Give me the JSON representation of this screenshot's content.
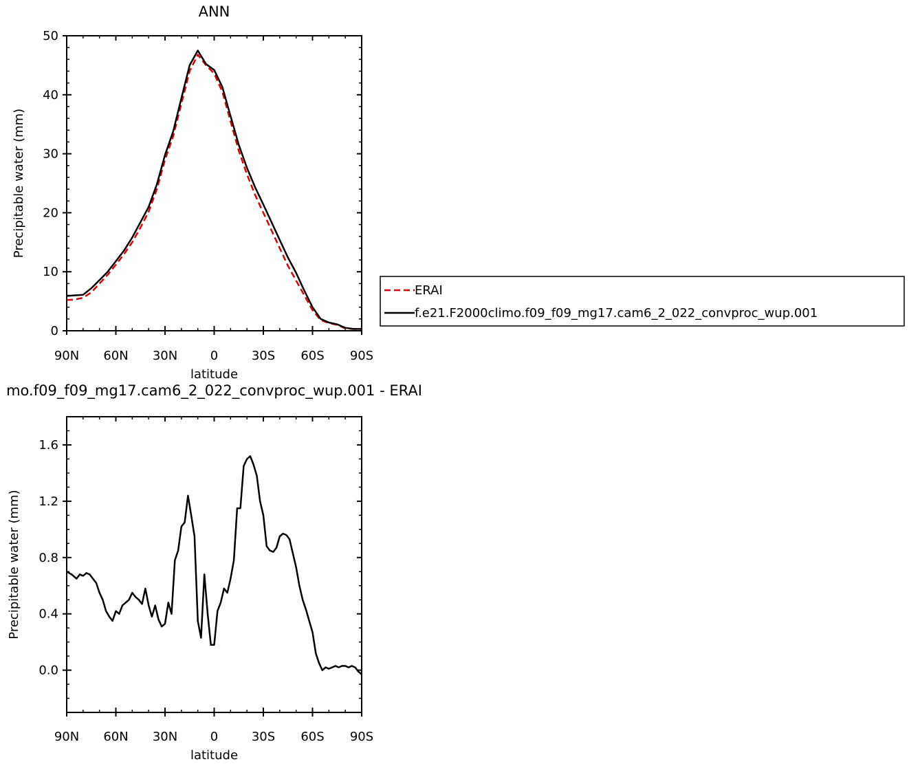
{
  "chart_data": [
    {
      "type": "line",
      "title": "ANN",
      "xlabel": "latitude",
      "ylabel": "Precipitable water (mm)",
      "xlim": [
        90,
        -90
      ],
      "ylim": [
        0,
        50
      ],
      "x_ticks": [
        {
          "value": 90,
          "label": "90N"
        },
        {
          "value": 60,
          "label": "60N"
        },
        {
          "value": 30,
          "label": "30N"
        },
        {
          "value": 0,
          "label": "0"
        },
        {
          "value": -30,
          "label": "30S"
        },
        {
          "value": -60,
          "label": "60S"
        },
        {
          "value": -90,
          "label": "90S"
        }
      ],
      "y_ticks": [
        {
          "value": 0,
          "label": "0"
        },
        {
          "value": 10,
          "label": "10"
        },
        {
          "value": 20,
          "label": "20"
        },
        {
          "value": 30,
          "label": "30"
        },
        {
          "value": 40,
          "label": "40"
        },
        {
          "value": 50,
          "label": "50"
        }
      ],
      "legend_placement": "right",
      "series": [
        {
          "name": "ERAI",
          "color": "#e00000",
          "style": "dashed",
          "x": [
            90,
            85,
            80,
            75,
            70,
            65,
            60,
            55,
            50,
            45,
            40,
            35,
            30,
            25,
            20,
            15,
            10,
            5,
            0,
            -5,
            -10,
            -15,
            -20,
            -25,
            -30,
            -35,
            -40,
            -45,
            -50,
            -55,
            -60,
            -65,
            -70,
            -75,
            -80,
            -85,
            -90
          ],
          "y": [
            5.2,
            5.3,
            5.6,
            6.5,
            8.0,
            9.5,
            11.2,
            13.0,
            15.0,
            17.5,
            20.2,
            24.0,
            29.0,
            33.0,
            38.5,
            44.0,
            46.8,
            45.0,
            43.6,
            40.5,
            35.5,
            30.5,
            26.5,
            23.0,
            20.0,
            17.0,
            14.0,
            11.0,
            8.5,
            6.0,
            3.5,
            1.8,
            1.3,
            1.0,
            0.4,
            0.3,
            0.3
          ]
        },
        {
          "name": "f.e21.F2000climo.f09_f09_mg17.cam6_2_022_convproc_wup.001",
          "color": "#000000",
          "style": "solid",
          "x": [
            90,
            85,
            80,
            75,
            70,
            65,
            60,
            55,
            50,
            45,
            40,
            35,
            30,
            25,
            20,
            15,
            10,
            5,
            0,
            -5,
            -10,
            -15,
            -20,
            -25,
            -30,
            -35,
            -40,
            -45,
            -50,
            -55,
            -60,
            -65,
            -70,
            -75,
            -80,
            -85,
            -90
          ],
          "y": [
            5.9,
            6.0,
            6.1,
            7.2,
            8.6,
            10.0,
            11.8,
            13.6,
            15.8,
            18.4,
            21.0,
            24.8,
            29.8,
            33.8,
            39.4,
            45.0,
            47.5,
            45.2,
            44.2,
            41.3,
            36.4,
            31.5,
            27.6,
            24.3,
            21.4,
            18.4,
            15.4,
            12.4,
            9.8,
            6.8,
            4.0,
            2.0,
            1.4,
            1.1,
            0.5,
            0.3,
            0.3
          ]
        }
      ]
    },
    {
      "type": "line",
      "title": "mo.f09_f09_mg17.cam6_2_022_convproc_wup.001 - ERAI",
      "xlabel": "latitude",
      "ylabel": "Precipitable water (mm)",
      "xlim": [
        90,
        -90
      ],
      "ylim": [
        -0.3,
        1.8
      ],
      "x_ticks": [
        {
          "value": 90,
          "label": "90N"
        },
        {
          "value": 60,
          "label": "60N"
        },
        {
          "value": 30,
          "label": "30N"
        },
        {
          "value": 0,
          "label": "0"
        },
        {
          "value": -30,
          "label": "30S"
        },
        {
          "value": -60,
          "label": "60S"
        },
        {
          "value": -90,
          "label": "90S"
        }
      ],
      "y_ticks": [
        {
          "value": 0.0,
          "label": "0.0"
        },
        {
          "value": 0.4,
          "label": "0.4"
        },
        {
          "value": 0.8,
          "label": "0.8"
        },
        {
          "value": 1.2,
          "label": "1.2"
        },
        {
          "value": 1.6,
          "label": "1.6"
        }
      ],
      "series": [
        {
          "color": "#000000",
          "style": "solid",
          "x": [
            90,
            87,
            84,
            82,
            80,
            78,
            76,
            74,
            72,
            70,
            68,
            66,
            64,
            62,
            60,
            58,
            56,
            54,
            52,
            50,
            48,
            46,
            44,
            42,
            40,
            38,
            36,
            34,
            32,
            30,
            28,
            26,
            24,
            22,
            20,
            18,
            16,
            14,
            12,
            10,
            8,
            6,
            4,
            2,
            0,
            -2,
            -4,
            -6,
            -8,
            -10,
            -12,
            -14,
            -16,
            -18,
            -20,
            -22,
            -24,
            -26,
            -28,
            -30,
            -32,
            -34,
            -36,
            -38,
            -40,
            -42,
            -44,
            -46,
            -48,
            -50,
            -52,
            -54,
            -56,
            -58,
            -60,
            -62,
            -64,
            -66,
            -68,
            -70,
            -72,
            -74,
            -76,
            -78,
            -80,
            -82,
            -84,
            -86,
            -88,
            -90
          ],
          "y": [
            0.7,
            0.68,
            0.65,
            0.68,
            0.67,
            0.69,
            0.68,
            0.65,
            0.62,
            0.55,
            0.5,
            0.42,
            0.38,
            0.35,
            0.42,
            0.4,
            0.46,
            0.48,
            0.5,
            0.55,
            0.52,
            0.5,
            0.47,
            0.58,
            0.46,
            0.38,
            0.46,
            0.36,
            0.31,
            0.33,
            0.48,
            0.4,
            0.78,
            0.85,
            1.02,
            1.05,
            1.24,
            1.1,
            0.95,
            0.35,
            0.23,
            0.68,
            0.4,
            0.18,
            0.18,
            0.42,
            0.48,
            0.58,
            0.55,
            0.65,
            0.78,
            1.15,
            1.15,
            1.45,
            1.5,
            1.52,
            1.46,
            1.38,
            1.2,
            1.1,
            0.88,
            0.85,
            0.84,
            0.87,
            0.95,
            0.97,
            0.96,
            0.93,
            0.83,
            0.73,
            0.6,
            0.5,
            0.43,
            0.35,
            0.27,
            0.12,
            0.05,
            0.0,
            0.02,
            0.01,
            0.02,
            0.03,
            0.02,
            0.03,
            0.03,
            0.02,
            0.03,
            0.02,
            -0.01,
            -0.03
          ]
        }
      ]
    }
  ]
}
